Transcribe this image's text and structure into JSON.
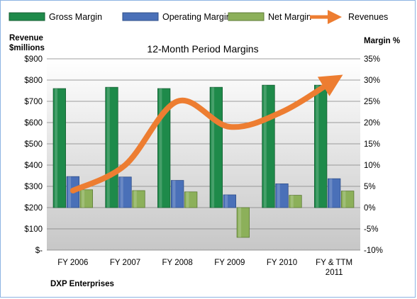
{
  "chart_data": {
    "type": "bar",
    "title": "12-Month Period Margins",
    "company": "DXP Enterprises",
    "categories": [
      [
        "FY 2006"
      ],
      [
        "FY 2007"
      ],
      [
        "FY 2008"
      ],
      [
        "FY 2009"
      ],
      [
        "FY 2010"
      ],
      [
        "FY & TTM",
        "2011"
      ]
    ],
    "series": [
      {
        "name": "Gross Margin",
        "type": "bar",
        "axis": "right",
        "color": "#1e8a4a",
        "values": [
          28,
          28.3,
          28,
          28.3,
          28.8,
          28.8
        ]
      },
      {
        "name": "Operating Margin",
        "type": "bar",
        "axis": "right",
        "color": "#4a70b8",
        "values": [
          7.3,
          7.2,
          6.4,
          3,
          5.6,
          6.8
        ]
      },
      {
        "name": "Net Margin",
        "type": "bar",
        "axis": "right",
        "color": "#8cb05a",
        "values": [
          4.2,
          4,
          3.7,
          -7,
          2.9,
          3.9
        ]
      },
      {
        "name": "Revenues",
        "type": "line",
        "axis": "left",
        "color": "#ed7d31",
        "values": [
          280,
          400,
          700,
          580,
          650,
          800
        ]
      }
    ],
    "left_axis": {
      "label_line1": "Revenue",
      "label_line2": "$millions",
      "ylim": [
        0,
        900
      ],
      "ticks": [
        "$-",
        "$100",
        "$200",
        "$300",
        "$400",
        "$500",
        "$600",
        "$700",
        "$800",
        "$900"
      ]
    },
    "right_axis": {
      "label": "Margin %",
      "ylim": [
        -10,
        35
      ],
      "ticks": [
        "-10%",
        "-5%",
        "0%",
        "5%",
        "10%",
        "15%",
        "20%",
        "25%",
        "30%",
        "35%"
      ]
    },
    "grid": true,
    "legend_position": "top"
  }
}
